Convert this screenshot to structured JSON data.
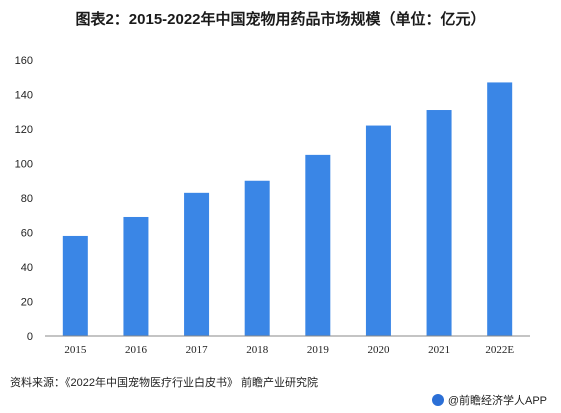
{
  "title": "图表2：2015-2022年中国宠物用药品市场规模（单位：亿元）",
  "source": "资料来源：《2022年中国宠物医疗行业白皮书》 前瞻产业研究院",
  "brand": "@前瞻经济学人APP",
  "colors": {
    "bar": "#3a86e6",
    "axis": "#888888"
  },
  "chart_data": {
    "type": "bar",
    "title": "图表2：2015-2022年中国宠物用药品市场规模（单位：亿元）",
    "xlabel": "",
    "ylabel": "",
    "categories": [
      "2015",
      "2016",
      "2017",
      "2018",
      "2019",
      "2020",
      "2021",
      "2022E"
    ],
    "values": [
      58,
      69,
      83,
      90,
      105,
      122,
      131,
      147
    ],
    "ylim": [
      0,
      160
    ],
    "yticks": [
      0,
      20,
      40,
      60,
      80,
      100,
      120,
      140,
      160
    ],
    "grid": false,
    "legend": "none"
  }
}
